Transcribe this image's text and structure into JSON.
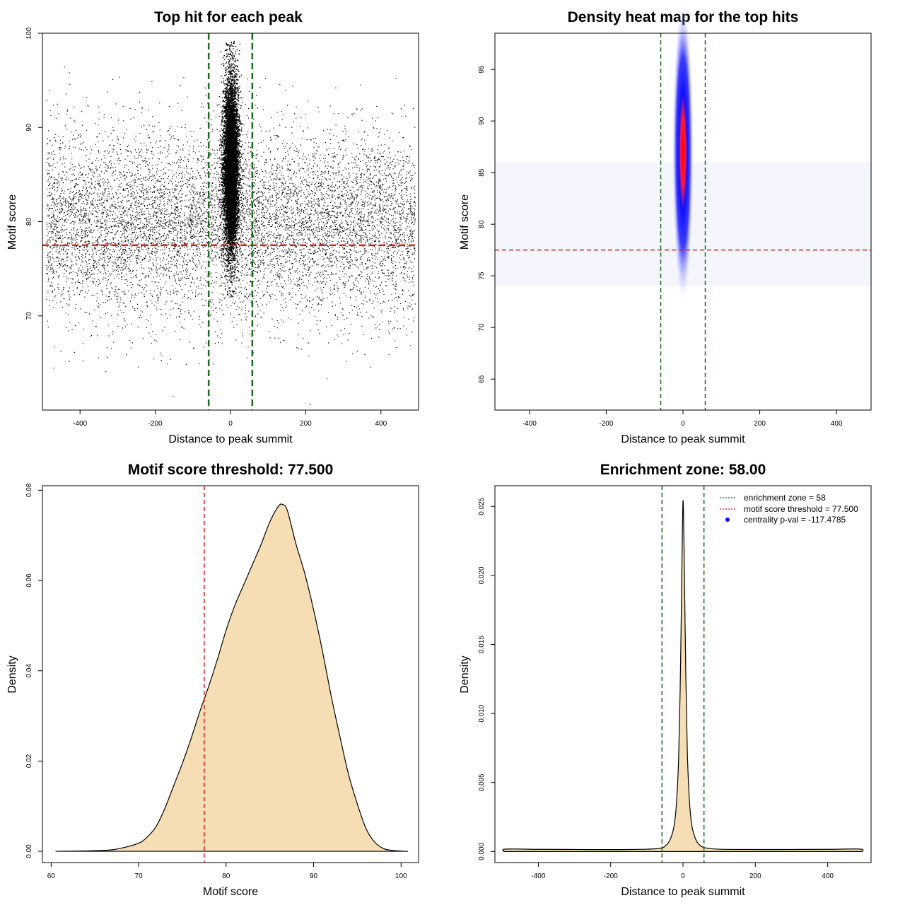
{
  "chart_data": [
    {
      "type": "scatter",
      "title": "Top hit for each peak",
      "xlabel": "Distance to peak summit",
      "ylabel": "Motif score",
      "xlim": [
        -500,
        500
      ],
      "ylim": [
        60,
        100
      ],
      "xticks": [
        -400,
        -200,
        0,
        200,
        400
      ],
      "yticks": [
        70,
        80,
        90,
        100
      ],
      "points_note": "Dense cloud of top hits: broad background across -490..490 spanning scores ~67-98 centered ~80; sharp central cluster at 0 spanning scores ~73-99",
      "background": {
        "x_range": [
          -490,
          490
        ],
        "y_mean": 80,
        "y_sd": 4.8
      },
      "central_cluster": {
        "x_mean": 0,
        "x_sd": 10,
        "y_mean": 86,
        "y_sd": 4.6
      },
      "hlines": [
        {
          "y": 77.5,
          "color": "#d42020",
          "style": "dashed"
        }
      ],
      "vlines": [
        {
          "x": -58,
          "color": "#1a6b1a",
          "style": "dashed"
        },
        {
          "x": 58,
          "color": "#1a6b1a",
          "style": "dashed"
        }
      ]
    },
    {
      "type": "heatmap",
      "title": "Density heat map for the top hits",
      "xlabel": "Distance to peak summit",
      "ylabel": "Motif score",
      "xlim": [
        -490,
        490
      ],
      "ylim": [
        62,
        98.5
      ],
      "xticks": [
        -400,
        -200,
        0,
        200,
        400
      ],
      "yticks": [
        65,
        70,
        75,
        80,
        85,
        90,
        95
      ],
      "peak": {
        "x": 0,
        "y": 87,
        "x_sd": 9,
        "y_sd": 4.5
      },
      "colors": [
        "#ffffff",
        "#0000ff",
        "#ff0000"
      ],
      "hlines": [
        {
          "y": 77.5,
          "color": "#d42020",
          "style": "dashed"
        }
      ],
      "vlines": [
        {
          "x": -58,
          "color": "#1a6b1a",
          "style": "dashed"
        },
        {
          "x": 58,
          "color": "#1a6b1a",
          "style": "dashed"
        }
      ]
    },
    {
      "type": "area",
      "title": "Motif score threshold: 77.500",
      "xlabel": "Motif score",
      "ylabel": "Density",
      "xlim": [
        59,
        102
      ],
      "ylim": [
        -0.0025,
        0.081
      ],
      "xticks": [
        60,
        70,
        80,
        90,
        100
      ],
      "yticks": [
        0.0,
        0.02,
        0.04,
        0.06,
        0.08
      ],
      "ytick_labels": [
        "0.00",
        "0.02",
        "0.04",
        "0.06",
        "0.08"
      ],
      "x": [
        60.5,
        66,
        68,
        70,
        71,
        72,
        73,
        74,
        75,
        76,
        77,
        78,
        79,
        80,
        81,
        82,
        83,
        84,
        85,
        86,
        86.5,
        87,
        88,
        89,
        90,
        91,
        92,
        93,
        94,
        95,
        96,
        97,
        98,
        99,
        100,
        100.8
      ],
      "y": [
        0,
        0.0002,
        0.0007,
        0.0018,
        0.0032,
        0.0055,
        0.0095,
        0.0145,
        0.0195,
        0.025,
        0.031,
        0.0365,
        0.0425,
        0.049,
        0.0545,
        0.059,
        0.0635,
        0.068,
        0.073,
        0.0765,
        0.0768,
        0.0755,
        0.068,
        0.0615,
        0.0535,
        0.0445,
        0.0345,
        0.0255,
        0.017,
        0.0105,
        0.005,
        0.002,
        0.0006,
        0.0002,
        5e-05,
        0
      ],
      "fill": "#f5deb3",
      "vlines": [
        {
          "x": 77.5,
          "color": "#d42020",
          "style": "dashed"
        }
      ]
    },
    {
      "type": "area",
      "title": "Enrichment zone: 58.00",
      "xlabel": "Distance to peak summit",
      "ylabel": "Density",
      "xlim": [
        -520,
        520
      ],
      "ylim": [
        -0.0008,
        0.0265
      ],
      "xticks": [
        -400,
        -200,
        0,
        200,
        400
      ],
      "yticks": [
        0.0,
        0.005,
        0.01,
        0.015,
        0.02,
        0.025
      ],
      "ytick_labels": [
        "0.000",
        "0.005",
        "0.010",
        "0.015",
        "0.020",
        "0.025"
      ],
      "x": [
        -495,
        -490,
        -400,
        -300,
        -200,
        -100,
        -60,
        -45,
        -35,
        -25,
        -18,
        -12,
        -8,
        -4,
        -2,
        0,
        2,
        4,
        8,
        12,
        18,
        25,
        35,
        45,
        60,
        100,
        200,
        300,
        400,
        490,
        495
      ],
      "y": [
        0,
        0.00018,
        0.00016,
        0.00015,
        0.00014,
        0.00017,
        0.00025,
        0.0005,
        0.0009,
        0.0018,
        0.0035,
        0.0068,
        0.0115,
        0.0185,
        0.0225,
        0.0254,
        0.0238,
        0.02,
        0.0125,
        0.0072,
        0.0036,
        0.0018,
        0.0009,
        0.0005,
        0.00028,
        0.00017,
        0.00015,
        0.00015,
        0.00016,
        0.00018,
        0
      ],
      "fill": "#f5deb3",
      "vlines": [
        {
          "x": -58,
          "color": "#1a6b1a",
          "style": "dashed"
        },
        {
          "x": 58,
          "color": "#1a6b1a",
          "style": "dashed"
        }
      ],
      "legend": {
        "position": "top-right",
        "entries": [
          {
            "label": "enrichment zone = 58",
            "color": "#1a6b1a",
            "kind": "dotted-line"
          },
          {
            "label": "motif score threshold = 77.500",
            "color": "#d42020",
            "kind": "dotted-line"
          },
          {
            "label": "centrality p-val = -117.4785",
            "color": "#0000ff",
            "kind": "point"
          }
        ]
      }
    }
  ]
}
